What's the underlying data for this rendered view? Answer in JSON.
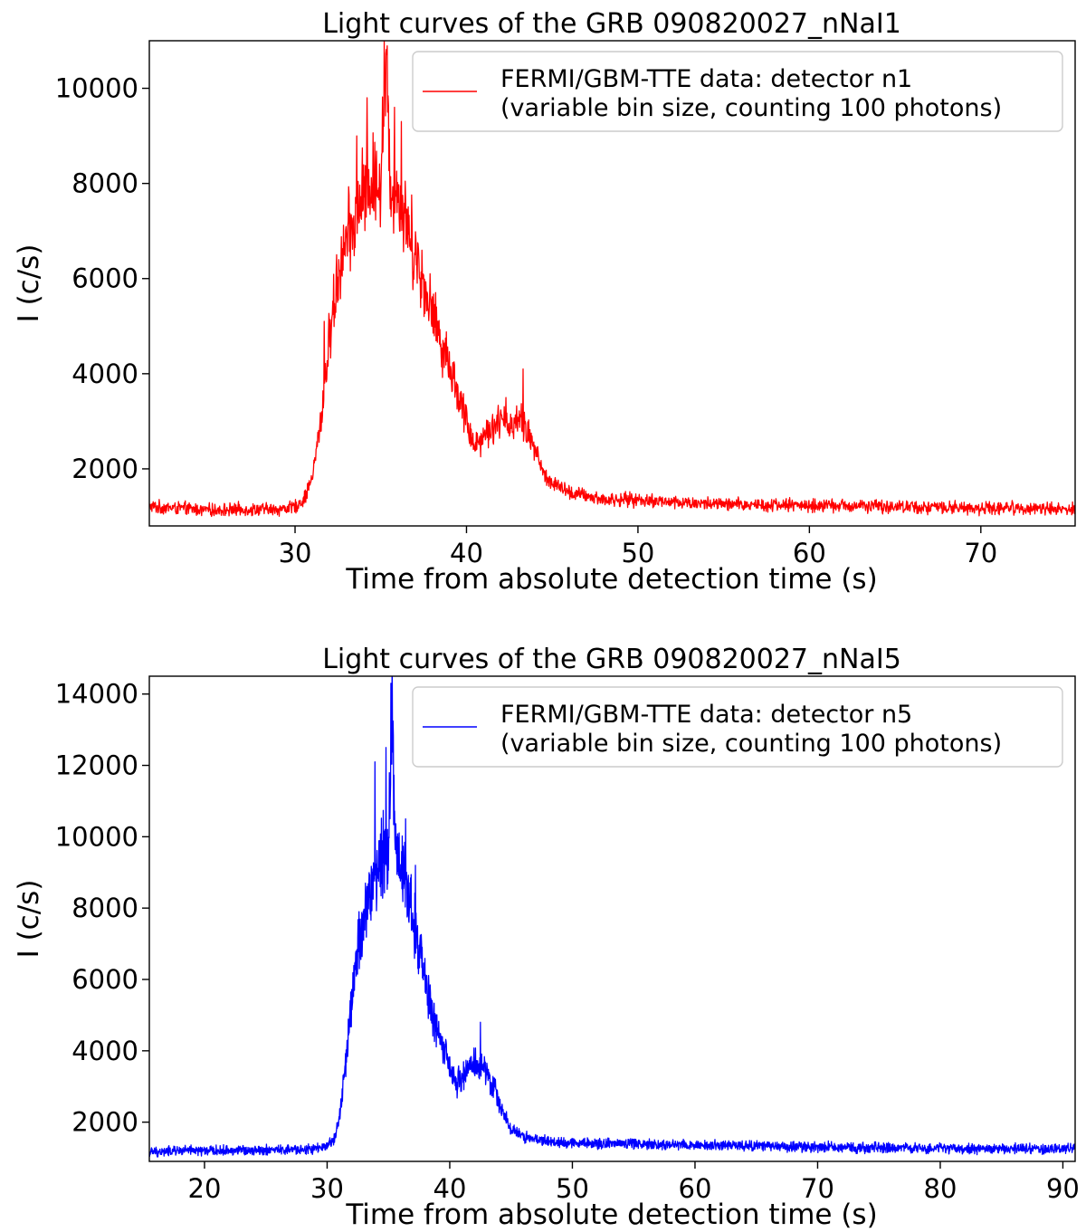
{
  "chart_data": [
    {
      "type": "line",
      "title": "Light curves of the GRB 090820027_nNaI1",
      "xlabel": "Time from absolute detection time (s)",
      "ylabel": "I (c/s)",
      "xlim": [
        21.5,
        75.5
      ],
      "ylim": [
        800,
        11000
      ],
      "xticks": [
        30,
        40,
        50,
        60,
        70
      ],
      "yticks": [
        2000,
        4000,
        6000,
        8000,
        10000
      ],
      "grid": false,
      "legend_position": "top-right",
      "series": [
        {
          "name": "FERMI/GBM-TTE data: detector n1",
          "name_line2": "(variable bin size, counting 100 photons)",
          "color": "#ff0000",
          "points": [
            [
              21.5,
              1200
            ],
            [
              23,
              1180
            ],
            [
              25,
              1130
            ],
            [
              27,
              1150
            ],
            [
              29,
              1150
            ],
            [
              30,
              1200
            ],
            [
              30.5,
              1350
            ],
            [
              31,
              1800
            ],
            [
              31.5,
              3000
            ],
            [
              32,
              4700
            ],
            [
              32.5,
              6100
            ],
            [
              33,
              6800
            ],
            [
              33.5,
              7200
            ],
            [
              34,
              7800
            ],
            [
              34.5,
              8000
            ],
            [
              35,
              8200
            ],
            [
              35.3,
              10400
            ],
            [
              35.6,
              8000
            ],
            [
              36,
              7800
            ],
            [
              36.5,
              7200
            ],
            [
              37,
              6600
            ],
            [
              37.5,
              5900
            ],
            [
              38,
              5300
            ],
            [
              38.5,
              4700
            ],
            [
              39,
              4200
            ],
            [
              39.5,
              3600
            ],
            [
              40,
              3000
            ],
            [
              40.5,
              2500
            ],
            [
              41,
              2700
            ],
            [
              41.5,
              2900
            ],
            [
              42,
              3000
            ],
            [
              42.5,
              2900
            ],
            [
              43,
              3100
            ],
            [
              43.5,
              2800
            ],
            [
              44,
              2400
            ],
            [
              44.5,
              1900
            ],
            [
              45,
              1700
            ],
            [
              46,
              1500
            ],
            [
              48,
              1350
            ],
            [
              50,
              1350
            ],
            [
              52,
              1300
            ],
            [
              55,
              1250
            ],
            [
              58,
              1250
            ],
            [
              60,
              1230
            ],
            [
              63,
              1220
            ],
            [
              66,
              1200
            ],
            [
              69,
              1180
            ],
            [
              72,
              1180
            ],
            [
              75.5,
              1150
            ]
          ],
          "spikes": [
            [
              35.2,
              11000
            ],
            [
              34.2,
              9800
            ],
            [
              35.8,
              9600
            ],
            [
              36.2,
              9300
            ],
            [
              43.3,
              4100
            ],
            [
              42.3,
              3500
            ],
            [
              31.7,
              5100
            ],
            [
              33.6,
              9000
            ]
          ]
        }
      ]
    },
    {
      "type": "line",
      "title": "Light curves of the GRB 090820027_nNaI5",
      "xlabel": "Time from absolute detection time (s)",
      "ylabel": "I (c/s)",
      "xlim": [
        15.5,
        91
      ],
      "ylim": [
        900,
        14500
      ],
      "xticks": [
        20,
        30,
        40,
        50,
        60,
        70,
        80,
        90
      ],
      "yticks": [
        2000,
        4000,
        6000,
        8000,
        10000,
        12000,
        14000
      ],
      "grid": false,
      "legend_position": "top-right",
      "series": [
        {
          "name": "FERMI/GBM-TTE data: detector n5",
          "name_line2": "(variable bin size, counting 100 photons)",
          "color": "#0000ff",
          "points": [
            [
              15.5,
              1150
            ],
            [
              18,
              1200
            ],
            [
              21,
              1200
            ],
            [
              24,
              1220
            ],
            [
              27,
              1220
            ],
            [
              29,
              1250
            ],
            [
              30,
              1300
            ],
            [
              30.5,
              1500
            ],
            [
              31,
              2100
            ],
            [
              31.5,
              3600
            ],
            [
              32,
              5400
            ],
            [
              32.5,
              6800
            ],
            [
              33,
              7600
            ],
            [
              33.5,
              8400
            ],
            [
              34,
              9000
            ],
            [
              34.5,
              9500
            ],
            [
              35,
              9700
            ],
            [
              35.3,
              13500
            ],
            [
              35.6,
              9500
            ],
            [
              36,
              9300
            ],
            [
              36.5,
              8700
            ],
            [
              37,
              7800
            ],
            [
              37.5,
              6800
            ],
            [
              38,
              5900
            ],
            [
              38.5,
              5200
            ],
            [
              39,
              4600
            ],
            [
              39.5,
              4000
            ],
            [
              40,
              3500
            ],
            [
              40.5,
              3000
            ],
            [
              41,
              3300
            ],
            [
              41.5,
              3500
            ],
            [
              42,
              3700
            ],
            [
              42.5,
              3500
            ],
            [
              43,
              3400
            ],
            [
              43.5,
              3000
            ],
            [
              44,
              2600
            ],
            [
              44.5,
              2200
            ],
            [
              45,
              1800
            ],
            [
              46,
              1600
            ],
            [
              48,
              1450
            ],
            [
              50,
              1420
            ],
            [
              55,
              1400
            ],
            [
              60,
              1360
            ],
            [
              65,
              1330
            ],
            [
              70,
              1300
            ],
            [
              75,
              1280
            ],
            [
              80,
              1260
            ],
            [
              85,
              1250
            ],
            [
              91,
              1250
            ]
          ],
          "spikes": [
            [
              35.2,
              14300
            ],
            [
              33.9,
              12100
            ],
            [
              34.8,
              12500
            ],
            [
              36.4,
              10500
            ],
            [
              42.5,
              4800
            ],
            [
              32.6,
              7900
            ],
            [
              37.2,
              9200
            ]
          ]
        }
      ]
    }
  ]
}
